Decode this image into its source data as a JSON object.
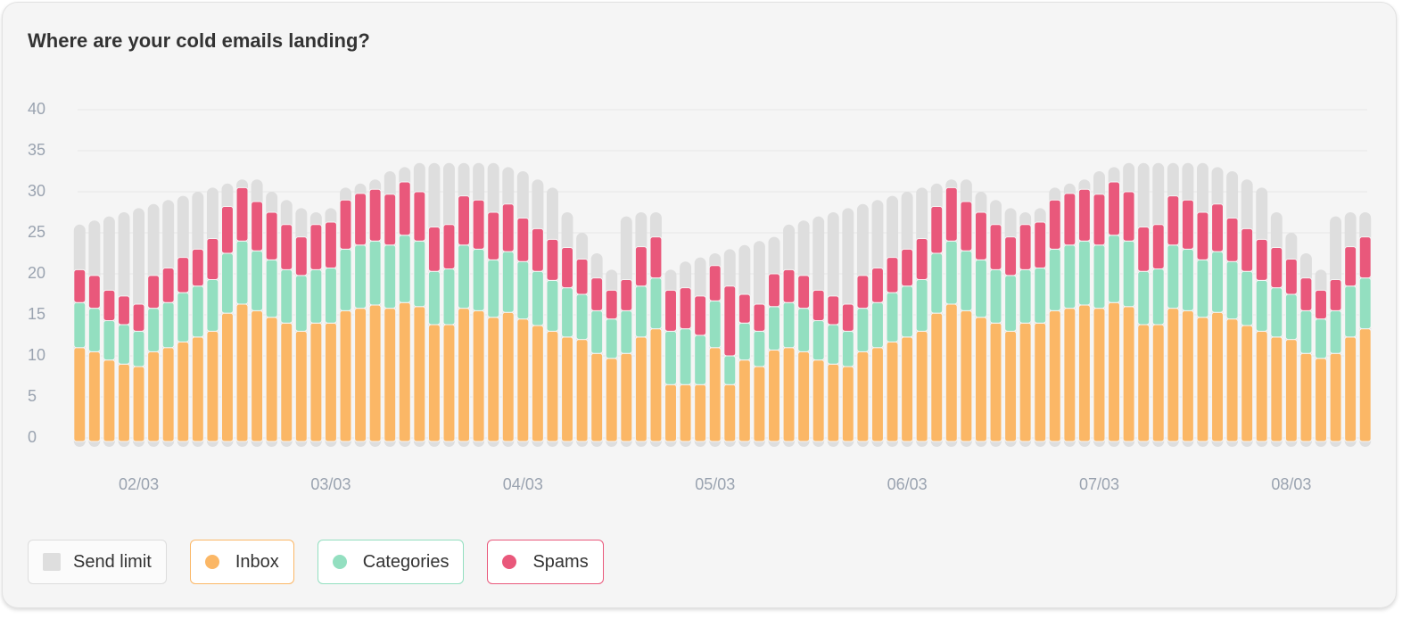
{
  "chart_data": {
    "type": "bar",
    "title": "Where are your cold emails landing?",
    "categories": [
      null,
      null,
      null,
      null,
      "02/03",
      null,
      null,
      null,
      null,
      null,
      null,
      null,
      null,
      null,
      null,
      null,
      null,
      "03/03",
      null,
      null,
      null,
      null,
      null,
      null,
      null,
      null,
      null,
      null,
      null,
      null,
      "04/03",
      null,
      null,
      null,
      null,
      null,
      null,
      null,
      null,
      null,
      null,
      null,
      null,
      "05/03",
      null,
      null,
      null,
      null,
      null,
      null,
      null,
      null,
      null,
      null,
      null,
      null,
      "06/03",
      null,
      null,
      null,
      null,
      null,
      null,
      null,
      null,
      null,
      null,
      null,
      null,
      "07/03",
      null,
      null,
      null,
      null,
      null,
      null,
      null,
      null,
      null,
      null,
      null,
      null,
      "08/03",
      null,
      null,
      null,
      null,
      null
    ],
    "limit": {
      "name": "Send limit",
      "color": "#dedede",
      "values": [
        26,
        26.5,
        27,
        27.5,
        28,
        28.5,
        29,
        29.5,
        30,
        30.5,
        31,
        31.5,
        31.5,
        30,
        29,
        28,
        27.5,
        28,
        30.5,
        31,
        31.5,
        32.5,
        33,
        33.5,
        33.5,
        33.5,
        33.5,
        33.5,
        33.5,
        33,
        32.5,
        31.5,
        30.5,
        27.5,
        25,
        22.5,
        20.5,
        27,
        27.5,
        27.5,
        20.5,
        21.5,
        22,
        22.5,
        23,
        23.5,
        24,
        24.5,
        26,
        26.5,
        27,
        27.5,
        28,
        28.5,
        29,
        29.5,
        30,
        30.5,
        31,
        31.5,
        31.5,
        30,
        29,
        28,
        27.5,
        28,
        30.5,
        31,
        31.5,
        32.5,
        33,
        33.5,
        33.5,
        33.5,
        33.5,
        33.5,
        33.5,
        33,
        32.5,
        31.5,
        30.5,
        27.5,
        25,
        22.5,
        20.5,
        27,
        27.5,
        27.5
      ]
    },
    "series": [
      {
        "name": "Inbox",
        "color": "#fbb766",
        "values": [
          11,
          10.5,
          9.5,
          9,
          8.7,
          10.5,
          11,
          11.7,
          12.3,
          13,
          15.2,
          16.3,
          15.5,
          14.7,
          14,
          13,
          14,
          14,
          15.5,
          15.8,
          16.2,
          15.8,
          16.5,
          16,
          13.8,
          13.8,
          15.8,
          15.5,
          14.7,
          15.3,
          14.5,
          13.7,
          13,
          12.3,
          12,
          10.3,
          9.7,
          10.3,
          12.3,
          13.3,
          6.5,
          6.5,
          6.5,
          11,
          6.5,
          9.5,
          8.7,
          10.7,
          11,
          10.5,
          9.5,
          9,
          8.7,
          10.5,
          11,
          11.7,
          12.3,
          13,
          15.2,
          16.3,
          15.5,
          14.7,
          14,
          13,
          14,
          14,
          15.5,
          15.8,
          16.2,
          15.8,
          16.5,
          16,
          13.8,
          13.8,
          15.8,
          15.5,
          14.7,
          15.3,
          14.5,
          13.7,
          13,
          12.3,
          12,
          10.3,
          9.7,
          10.3,
          12.3,
          13.3
        ]
      },
      {
        "name": "Categories",
        "color": "#93dfc0",
        "values": [
          5.5,
          5.3,
          4.8,
          4.8,
          4.3,
          5.3,
          5.5,
          6,
          6.2,
          6.3,
          7.3,
          7.7,
          7.3,
          7,
          6.5,
          6.8,
          6.5,
          6.7,
          7.5,
          7.7,
          7.8,
          7.7,
          8.2,
          8,
          6.5,
          6.8,
          7.7,
          7.5,
          7,
          7.4,
          7,
          6.6,
          6.2,
          6,
          5.5,
          5.2,
          4.8,
          5.2,
          6.2,
          6.2,
          6.5,
          6.8,
          6,
          5.7,
          3.5,
          4.5,
          4.3,
          5.3,
          5.5,
          5.3,
          4.8,
          4.8,
          4.3,
          5.3,
          5.5,
          6,
          6.2,
          6.3,
          7.3,
          7.7,
          7.3,
          7,
          6.5,
          6.8,
          6.5,
          6.7,
          7.5,
          7.7,
          7.8,
          7.7,
          8.2,
          8,
          6.5,
          6.8,
          7.7,
          7.5,
          7,
          7.4,
          7,
          6.6,
          6.2,
          6,
          5.5,
          5.2,
          4.8,
          5.2,
          6.2,
          6.2
        ]
      },
      {
        "name": "Spams",
        "color": "#e9587b",
        "values": [
          4,
          4,
          3.7,
          3.5,
          3.3,
          4,
          4.2,
          4.3,
          4.5,
          5,
          5.7,
          6.5,
          6,
          5.8,
          5.5,
          4.7,
          5.5,
          5.6,
          6,
          6.3,
          6.3,
          6.2,
          6.5,
          6,
          5.4,
          5.4,
          6,
          6,
          5.8,
          5.8,
          5.3,
          5.2,
          5,
          4.9,
          4.3,
          4,
          3.5,
          3.8,
          4.8,
          5,
          5,
          5,
          4.8,
          4.3,
          8.5,
          3.5,
          3.3,
          4,
          4,
          4,
          3.7,
          3.5,
          3.3,
          4,
          4.2,
          4.3,
          4.5,
          5,
          5.7,
          6.5,
          6,
          5.8,
          5.5,
          4.7,
          5.5,
          5.6,
          6,
          6.3,
          6.3,
          6.2,
          6.5,
          6,
          5.4,
          5.4,
          6,
          6,
          5.8,
          5.8,
          5.3,
          5.2,
          5,
          4.9,
          4.3,
          4,
          3.5,
          3.8,
          4.8,
          5
        ]
      }
    ],
    "stacked": true,
    "ylim": [
      0,
      40
    ],
    "yticks": [
      0,
      5,
      10,
      15,
      20,
      25,
      30,
      35,
      40
    ],
    "grid": true
  }
}
